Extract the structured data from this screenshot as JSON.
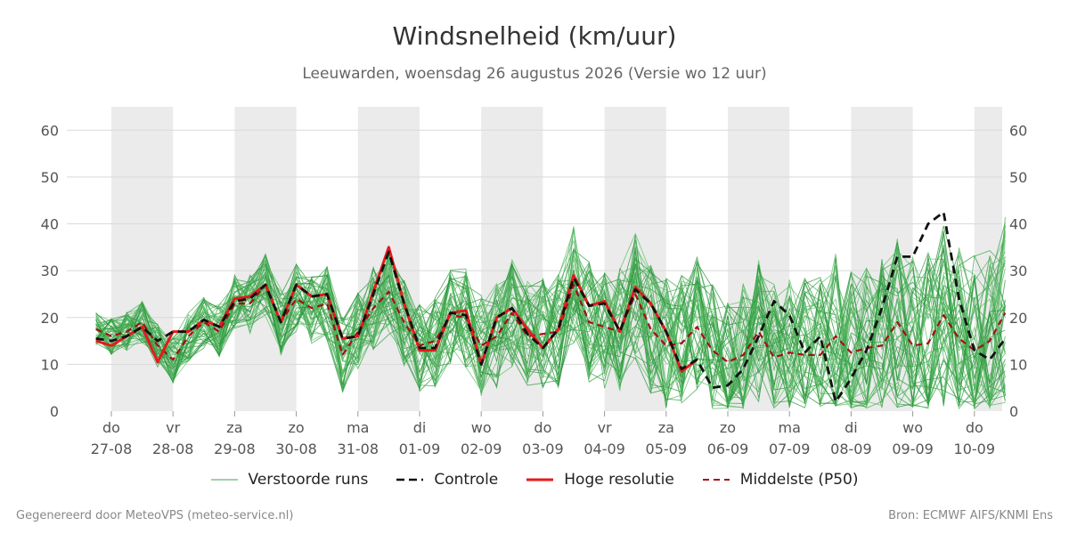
{
  "header": {
    "title": "Windsnelheid (km/uur)",
    "subtitle": "Leeuwarden, woensdag 26 augustus 2026 (Versie wo 12 uur)"
  },
  "footer": {
    "generated_by": "Gegenereerd door MeteoVPS (meteo-service.nl)",
    "source": "Bron: ECMWF AIFS/KNMI Ens"
  },
  "legend": [
    {
      "label": "Verstoorde runs",
      "color": "#3aa64a",
      "style": "thin"
    },
    {
      "label": "Controle",
      "color": "#111111",
      "style": "dashed"
    },
    {
      "label": "Hoge resolutie",
      "color": "#e41a1c",
      "style": "solid"
    },
    {
      "label": "Middelste (P50)",
      "color": "#a50f15",
      "style": "dashed"
    }
  ],
  "chart_data": {
    "type": "line",
    "x_unit": "days since 27-08 00:00 (x=0 at 'do 27-08' tick)",
    "xlim": [
      0,
      14.5
    ],
    "ylim": [
      0,
      65
    ],
    "yticks": [
      0,
      10,
      20,
      30,
      40,
      50,
      60
    ],
    "grid": true,
    "legend_position": "bottom",
    "x_ticks": [
      {
        "day": "do",
        "date": "27-08"
      },
      {
        "day": "vr",
        "date": "28-08"
      },
      {
        "day": "za",
        "date": "29-08"
      },
      {
        "day": "zo",
        "date": "30-08"
      },
      {
        "day": "ma",
        "date": "31-08"
      },
      {
        "day": "di",
        "date": "01-09"
      },
      {
        "day": "wo",
        "date": "02-09"
      },
      {
        "day": "do",
        "date": "03-09"
      },
      {
        "day": "vr",
        "date": "04-09"
      },
      {
        "day": "za",
        "date": "05-09"
      },
      {
        "day": "zo",
        "date": "06-09"
      },
      {
        "day": "ma",
        "date": "07-09"
      },
      {
        "day": "di",
        "date": "08-09"
      },
      {
        "day": "wo",
        "date": "09-09"
      },
      {
        "day": "do",
        "date": "10-09"
      }
    ],
    "night_shading": [
      [
        0,
        1
      ],
      [
        2,
        3
      ],
      [
        4,
        5
      ],
      [
        6,
        7
      ],
      [
        8,
        9
      ],
      [
        10,
        11
      ],
      [
        12,
        13
      ],
      [
        14,
        14.5
      ]
    ],
    "series": [
      {
        "name": "Hoge resolutie",
        "color": "#e41a1c",
        "x": [
          -0.25,
          0,
          0.25,
          0.5,
          0.75,
          1,
          1.25,
          1.5,
          1.75,
          2,
          2.25,
          2.5,
          2.75,
          3,
          3.25,
          3.5,
          3.75,
          4,
          4.25,
          4.5,
          4.75,
          5,
          5.25,
          5.5,
          5.75,
          6,
          6.25,
          6.5,
          6.75,
          7,
          7.25,
          7.5,
          7.75,
          8,
          8.25,
          8.5,
          8.75,
          9,
          9.25,
          9.5
        ],
        "y": [
          15,
          14,
          16,
          18,
          10.5,
          17,
          17,
          19.5,
          18,
          24,
          24.5,
          27,
          19,
          27,
          24.5,
          25,
          15.5,
          16,
          25.5,
          35,
          23,
          13,
          13,
          21,
          21.5,
          10,
          20,
          22,
          17.5,
          13.5,
          17.5,
          29,
          22.5,
          23.5,
          17,
          26.5,
          23,
          17,
          8.5,
          11
        ]
      },
      {
        "name": "Controle",
        "color": "#111111",
        "x": [
          -0.25,
          0,
          0.25,
          0.5,
          0.75,
          1,
          1.25,
          1.5,
          1.75,
          2,
          2.25,
          2.5,
          2.75,
          3,
          3.25,
          3.5,
          3.75,
          4,
          4.25,
          4.5,
          4.75,
          5,
          5.25,
          5.5,
          5.75,
          6,
          6.25,
          6.5,
          6.75,
          7,
          7.25,
          7.5,
          7.75,
          8,
          8.25,
          8.5,
          8.75,
          9,
          9.25,
          9.5,
          9.75,
          10,
          10.25,
          10.5,
          10.75,
          11,
          11.25,
          11.5,
          11.75,
          12,
          12.25,
          12.5,
          12.75,
          13,
          13.25,
          13.5,
          13.75,
          14,
          14.25,
          14.5
        ],
        "y": [
          15.5,
          15,
          16,
          18,
          15,
          17,
          17,
          19.5,
          18,
          23.5,
          24,
          27,
          19,
          27,
          24.5,
          25,
          15.5,
          16,
          25,
          34,
          23,
          13.5,
          13.5,
          21,
          20.5,
          10,
          20,
          22,
          16.5,
          13.5,
          17.5,
          28.5,
          22.5,
          23,
          17,
          26,
          23,
          17,
          9,
          11,
          5,
          5.5,
          9,
          16,
          23.5,
          20.5,
          12.5,
          16,
          2,
          7,
          13,
          22,
          33,
          33,
          40,
          42.5,
          24,
          13,
          11,
          15.5
        ]
      },
      {
        "name": "Middelste (P50)",
        "color": "#a50f15",
        "x": [
          -0.25,
          0,
          0.25,
          0.5,
          0.75,
          1,
          1.25,
          1.5,
          1.75,
          2,
          2.25,
          2.5,
          2.75,
          3,
          3.25,
          3.5,
          3.75,
          4,
          4.25,
          4.5,
          4.75,
          5,
          5.25,
          5.5,
          5.75,
          6,
          6.25,
          6.5,
          6.75,
          7,
          7.25,
          7.5,
          7.75,
          8,
          8.25,
          8.5,
          8.75,
          9,
          9.25,
          9.5,
          9.75,
          10,
          10.25,
          10.5,
          10.75,
          11,
          11.25,
          11.5,
          11.75,
          12,
          12.25,
          12.5,
          12.75,
          13,
          13.25,
          13.5,
          13.75,
          14,
          14.25,
          14.5
        ],
        "y": [
          17.5,
          16,
          17,
          19,
          14,
          11,
          16,
          19,
          17,
          23,
          23,
          27,
          19,
          24,
          22,
          23,
          12,
          17,
          22,
          25.5,
          19,
          14,
          15,
          20.5,
          20,
          14,
          16,
          21,
          16,
          16.5,
          17,
          27,
          19,
          18,
          17,
          25,
          17.5,
          14,
          14.5,
          18,
          13,
          10.5,
          12,
          17,
          11.5,
          12.5,
          12,
          12,
          16,
          12.5,
          13.5,
          14,
          19,
          14,
          14.5,
          20.5,
          15.5,
          13,
          15,
          21
        ]
      }
    ]
  }
}
